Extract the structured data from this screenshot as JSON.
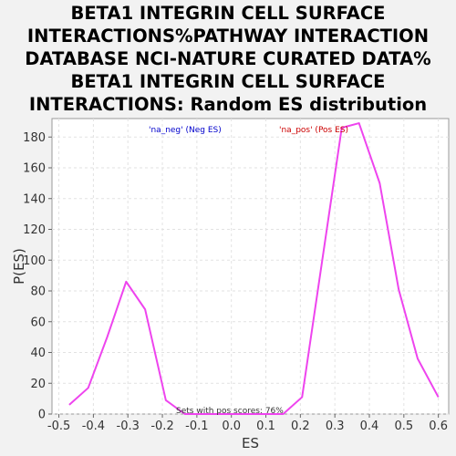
{
  "chart_data": {
    "type": "line",
    "title": "BETA1 INTEGRIN CELL SURFACE\nINTERACTIONS%PATHWAY INTERACTION\nDATABASE NCI-NATURE CURATED DATA%\nBETA1 INTEGRIN CELL SURFACE\nINTERACTIONS: Random ES distribution",
    "xlabel": "ES",
    "ylabel": "P(ES)",
    "xlim": [
      -0.52,
      0.63
    ],
    "ylim": [
      0,
      192
    ],
    "xticks": [
      "-0.5",
      "-0.4",
      "-0.3",
      "-0.2",
      "-0.1",
      "0.0",
      "0.1",
      "0.2",
      "0.3",
      "0.4",
      "0.5",
      "0.6"
    ],
    "xtick_values": [
      -0.5,
      -0.4,
      -0.3,
      -0.2,
      -0.1,
      0.0,
      0.1,
      0.2,
      0.3,
      0.4,
      0.5,
      0.6
    ],
    "yticks": [
      "0",
      "20",
      "40",
      "60",
      "80",
      "100",
      "120",
      "140",
      "160",
      "180"
    ],
    "ytick_values": [
      0,
      20,
      40,
      60,
      80,
      100,
      120,
      140,
      160,
      180
    ],
    "grid": true,
    "series": [
      {
        "color": "#ee44ee",
        "x": [
          -0.47,
          -0.415,
          -0.36,
          -0.305,
          -0.25,
          -0.19,
          -0.135,
          -0.08,
          -0.025,
          0.03,
          0.09,
          0.15,
          0.205,
          0.32,
          0.37,
          0.43,
          0.485,
          0.54,
          0.6
        ],
        "y": [
          6,
          17,
          50,
          86,
          68,
          9,
          0,
          0,
          0,
          0,
          0,
          0,
          11,
          186,
          189,
          150,
          81,
          36,
          11
        ]
      }
    ],
    "annotations": {
      "neg_label": "'na_neg' (Neg ES)",
      "neg_color": "#0000cc",
      "pos_label": "'na_pos' (Pos ES)",
      "pos_color": "#cc0000",
      "sets_text": "Sets with pos scores: 76%"
    }
  }
}
